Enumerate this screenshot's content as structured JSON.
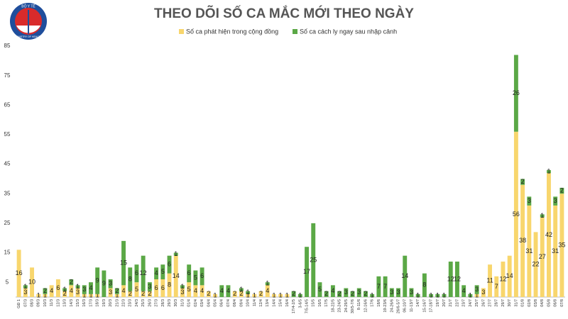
{
  "logo": {
    "top": "BỘ Y TẾ",
    "bottom": "MINISTRY OF HEALTH"
  },
  "chart_data": {
    "type": "stacked_bar",
    "title": "THEO DÕI SỐ CA MẮC MỚI THEO NGÀY",
    "categories": [
      "GĐ 1",
      "07/3",
      "08/3",
      "09/3",
      "10/3",
      "11/3",
      "12/3",
      "13/3",
      "14/3",
      "15/3",
      "16/3",
      "17/3",
      "18/3",
      "19/3",
      "20/3",
      "21/3",
      "22/3",
      "23/3",
      "24/3",
      "25/3",
      "26/3",
      "27/3",
      "28/3",
      "29/3",
      "30/3",
      "31/3",
      "01/4",
      "02/4",
      "03/4",
      "04/4",
      "05/4",
      "06/4",
      "07/4",
      "08/4",
      "09/4",
      "10/4",
      "11/4",
      "12/4",
      "13/4",
      "14/4",
      "15/4",
      "16/4",
      "17/4-2/5",
      "3-6/5",
      "7/5-14/5",
      "15/5",
      "16/5",
      "17/5",
      "18-22/5",
      "23-24/5",
      "24-29/5",
      "30/5-7/6",
      "8-11/6",
      "12-16/6",
      "17/6",
      "18/6",
      "19-23/6",
      "24-26/6",
      "26/6-5/7",
      "06-10/7",
      "11-13/7",
      "14/7",
      "15-16/7",
      "17-18/7",
      "19/7",
      "20/7",
      "21/7",
      "22/7",
      "23/7",
      "24/7",
      "25/7",
      "26/7",
      "27/7",
      "28/7",
      "29/7",
      "30/7",
      "31/7",
      "01/8",
      "02/8",
      "03/8",
      "04/8",
      "05/8",
      "06/8",
      "07/8"
    ],
    "series": [
      {
        "name": "Số ca phát hiện trong cộng đồng",
        "color": "#f8d66d",
        "values": [
          16,
          3,
          10,
          1,
          1,
          4,
          6,
          2,
          4,
          3,
          1,
          1,
          1,
          0,
          3,
          1,
          4,
          2,
          5,
          2,
          2,
          6,
          6,
          8,
          14,
          3,
          5,
          4,
          4,
          2,
          1,
          0,
          0,
          2,
          2,
          1,
          1,
          2,
          4,
          1,
          1,
          1,
          0,
          0,
          0,
          0,
          0,
          0,
          0,
          0,
          0,
          0,
          0,
          0,
          0,
          0,
          0,
          0,
          0,
          0,
          0,
          0,
          0,
          0,
          0,
          0,
          0,
          0,
          0,
          0,
          1,
          3,
          11,
          7,
          12,
          14,
          56,
          38,
          31,
          22,
          27,
          42,
          31,
          35
        ]
      },
      {
        "name": "Số ca cách ly ngay sau nhập cảnh",
        "color": "#5ba846",
        "values": [
          0,
          1,
          0,
          0,
          2,
          0,
          0,
          1,
          2,
          1,
          3,
          4,
          9,
          9,
          3,
          2,
          15,
          8,
          6,
          12,
          3,
          4,
          5,
          6,
          1,
          1,
          6,
          5,
          6,
          0,
          0,
          4,
          4,
          0,
          1,
          1,
          0,
          0,
          1,
          0,
          0,
          0,
          2,
          1,
          17,
          25,
          5,
          2,
          4,
          2,
          3,
          2,
          3,
          2,
          1,
          7,
          7,
          3,
          3,
          14,
          3,
          1,
          8,
          1,
          1,
          1,
          12,
          12,
          4,
          1,
          3,
          0,
          0,
          0,
          0,
          0,
          26,
          2,
          3,
          0,
          1,
          1,
          3,
          2
        ]
      }
    ],
    "ylim": [
      0,
      85
    ],
    "yticks": [
      5,
      15,
      25,
      35,
      45,
      55,
      65,
      75,
      85
    ]
  }
}
